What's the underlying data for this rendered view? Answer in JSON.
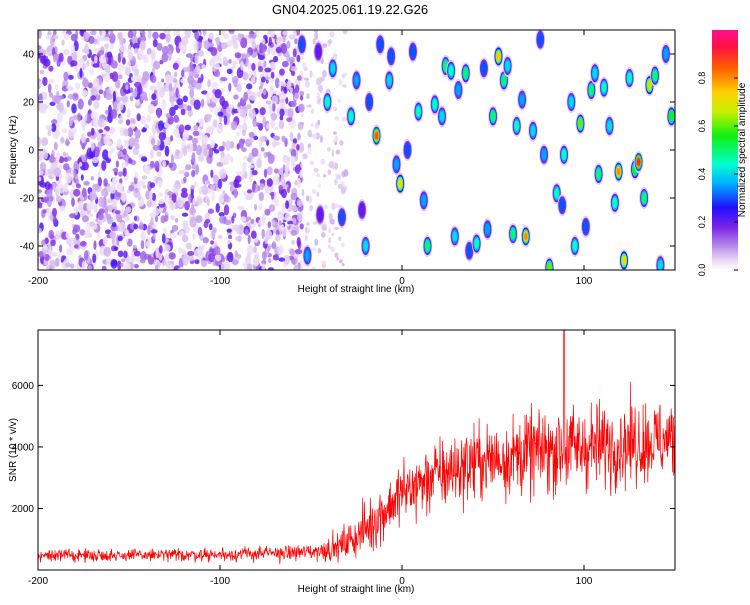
{
  "figure_title": "GN04.2025.061.19.22.G26",
  "chart_data": [
    {
      "type": "heatmap",
      "xlabel": "Height of straight line (km)",
      "ylabel": "Frequency (Hz)",
      "xlim": [
        -200,
        150
      ],
      "ylim": [
        -50,
        50
      ],
      "xticks": [
        -200,
        -100,
        0,
        100
      ],
      "yticks": [
        -40,
        -20,
        0,
        20,
        40
      ],
      "colorbar": {
        "label": "Normalized spectral amplitude",
        "range": [
          0,
          1
        ],
        "ticks": [
          0.0,
          0.2,
          0.4,
          0.6,
          0.8
        ],
        "tick_labels": [
          "0.0",
          "0.2",
          "0.4",
          "0.6",
          "0.8"
        ]
      },
      "regions": [
        {
          "x_range": [
            -200,
            -55
          ],
          "amplitude": "low (0.05-0.25)",
          "pattern": "dense noise"
        },
        {
          "x_range": [
            -55,
            150
          ],
          "amplitude": "up to 1.0",
          "pattern": "isolated spots"
        }
      ],
      "spots": [
        [
          -55,
          44,
          0.3
        ],
        [
          -52,
          -44,
          0.35
        ],
        [
          -46,
          41,
          0.2
        ],
        [
          -45,
          -27,
          0.2
        ],
        [
          -41,
          20,
          0.45
        ],
        [
          -38,
          34,
          0.4
        ],
        [
          -33,
          -28,
          0.3
        ],
        [
          -28,
          14,
          0.45
        ],
        [
          -25,
          29,
          0.35
        ],
        [
          -22,
          -25,
          0.2
        ],
        [
          -20,
          -40,
          0.4
        ],
        [
          -18,
          20,
          0.3
        ],
        [
          -14,
          6,
          0.85
        ],
        [
          -12,
          44,
          0.3
        ],
        [
          -7,
          29,
          0.4
        ],
        [
          -6,
          39,
          0.3
        ],
        [
          -3,
          -6,
          0.35
        ],
        [
          -1,
          -14,
          0.7
        ],
        [
          3,
          0,
          0.3
        ],
        [
          6,
          41,
          0.3
        ],
        [
          9,
          16,
          0.45
        ],
        [
          12,
          -21,
          0.35
        ],
        [
          14,
          -40,
          0.5
        ],
        [
          18,
          19,
          0.45
        ],
        [
          22,
          14,
          0.4
        ],
        [
          24,
          35,
          0.5
        ],
        [
          27,
          33,
          0.45
        ],
        [
          29,
          -36,
          0.4
        ],
        [
          31,
          25,
          0.35
        ],
        [
          35,
          32,
          0.5
        ],
        [
          37,
          -42,
          0.3
        ],
        [
          41,
          -39,
          0.45
        ],
        [
          45,
          34,
          0.3
        ],
        [
          47,
          -33,
          0.35
        ],
        [
          50,
          14,
          0.5
        ],
        [
          53,
          39,
          0.75
        ],
        [
          56,
          29,
          0.5
        ],
        [
          58,
          35,
          0.4
        ],
        [
          61,
          -35,
          0.5
        ],
        [
          63,
          10,
          0.45
        ],
        [
          66,
          21,
          0.35
        ],
        [
          68,
          -36,
          0.8
        ],
        [
          72,
          8,
          0.4
        ],
        [
          76,
          46,
          0.3
        ],
        [
          78,
          -2,
          0.35
        ],
        [
          81,
          -49,
          0.6
        ],
        [
          85,
          -18,
          0.45
        ],
        [
          88,
          -23,
          0.3
        ],
        [
          89,
          -2,
          0.45
        ],
        [
          93,
          20,
          0.4
        ],
        [
          95,
          -40,
          0.45
        ],
        [
          98,
          11,
          0.6
        ],
        [
          101,
          -32,
          0.3
        ],
        [
          104,
          25,
          0.5
        ],
        [
          106,
          32,
          0.4
        ],
        [
          108,
          -10,
          0.5
        ],
        [
          111,
          26,
          0.45
        ],
        [
          114,
          10,
          0.4
        ],
        [
          117,
          -22,
          0.45
        ],
        [
          119,
          -9,
          0.8
        ],
        [
          122,
          -46,
          0.7
        ],
        [
          125,
          30,
          0.45
        ],
        [
          128,
          -8,
          0.55
        ],
        [
          130,
          -5,
          0.9
        ],
        [
          133,
          -20,
          0.5
        ],
        [
          136,
          27,
          0.65
        ],
        [
          139,
          31,
          0.5
        ],
        [
          142,
          -48,
          0.4
        ],
        [
          145,
          40,
          0.35
        ],
        [
          148,
          14,
          0.55
        ]
      ]
    },
    {
      "type": "line",
      "xlabel": "Height of straight line (km)",
      "ylabel": "SNR (10 * v/v)",
      "xlim": [
        -200,
        150
      ],
      "ylim": [
        0,
        7800
      ],
      "xticks": [
        -200,
        -100,
        0,
        100
      ],
      "yticks": [
        2000,
        4000,
        6000
      ],
      "series": [
        {
          "color": "#ff0000",
          "envelope": {
            "x": [
              -200,
              -150,
              -100,
              -60,
              -45,
              -35,
              -25,
              -15,
              -5,
              0,
              10,
              20,
              40,
              60,
              80,
              100,
              120,
              150
            ],
            "mean": [
              480,
              480,
              500,
              560,
              620,
              750,
              1100,
              1600,
              2200,
              2500,
              2800,
              3100,
              3500,
              3700,
              3900,
              4000,
              4100,
              4250
            ],
            "spread": [
              250,
              260,
              280,
              320,
              420,
              600,
              900,
              1200,
              1300,
              1400,
              1500,
              1500,
              1600,
              1700,
              1800,
              1800,
              1800,
              1700
            ]
          },
          "peak_max": 7800,
          "peak_near_x": 89
        }
      ]
    }
  ]
}
